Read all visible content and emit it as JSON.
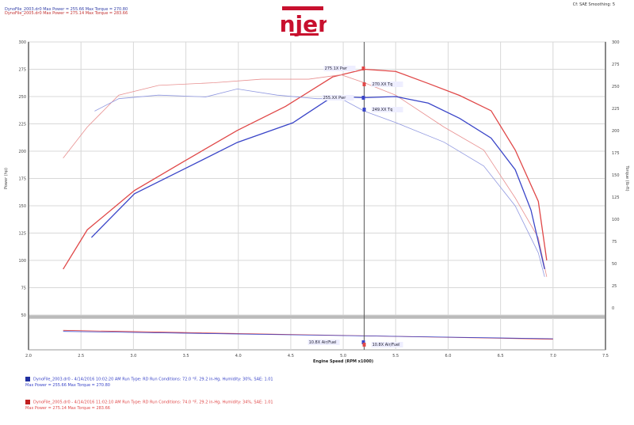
{
  "header": {
    "line1": "DynoFile_2003.dr0 Max Power = 255.66    Max Torque = 270.80",
    "line2": "DynoFile_2005.dr0 Max Power = 275.14    Max Torque = 283.66",
    "settings": "Cf: SAE  Smoothing: 5",
    "logo_text": "injen"
  },
  "colors": {
    "run1": "#3a45c8",
    "run2": "#e04848",
    "grid": "#d8d8d8",
    "axis": "#888888"
  },
  "cursor": {
    "labels": [
      "275.1X Pwr",
      "270.XX Tq",
      "255.XX Pwr",
      "249.XX Tq",
      "10.8X Air/Fuel",
      "10.8X Air/Fuel"
    ]
  },
  "legend": [
    {
      "line1": "DynoFile_2003.dr0 - 4/14/2016 10:02:20 AM  Run Type: RD  Run Conditions: 72.0 °F, 29.2 in-Hg, Humidity: 30%, SAE: 1.01",
      "line2": "Max Power = 255.66  Max Torque = 270.80"
    },
    {
      "line1": "DynoFile_2005.dr0 - 4/14/2016 11:02:10 AM  Run Type: RD  Run Conditions: 74.0 °F, 29.2 in-Hg, Humidity: 34%, SAE: 1.01",
      "line2": "Max Power = 275.14  Max Torque = 283.66"
    }
  ],
  "chart_data": {
    "type": "line",
    "xlabel": "Engine Speed (RPM x1000)",
    "ylabel": "Power (hp)",
    "y2label": "Torque (lb-ft)",
    "xlim": [
      2.0,
      7.5
    ],
    "xticks": [
      "2.0",
      "2.5",
      "3.0",
      "3.5",
      "4.0",
      "4.5",
      "5.0",
      "5.5",
      "6.0",
      "6.5",
      "7.0",
      "7.5"
    ],
    "ylim": [
      50,
      300
    ],
    "yticks": [
      "300",
      "275",
      "250",
      "225",
      "200",
      "175",
      "150",
      "125",
      "100",
      "75",
      "50"
    ],
    "y2lim": [
      0,
      300
    ],
    "y2ticks": [
      "300",
      "275",
      "250",
      "225",
      "200",
      "175",
      "150",
      "125",
      "100",
      "75",
      "50",
      "25",
      "0"
    ],
    "grid": true,
    "cursor_rpm": 5.2,
    "series": [
      {
        "axis": "left",
        "color": "#e04848",
        "width": 1.3,
        "x": [
          2.33,
          2.56,
          3.01,
          3.47,
          3.99,
          4.45,
          4.9,
          5.2,
          5.5,
          5.81,
          6.11,
          6.41,
          6.64,
          6.86,
          6.94
        ],
        "y": [
          92,
          128,
          164,
          190,
          219,
          241,
          268,
          275,
          273,
          262,
          251,
          237,
          201,
          154,
          100
        ]
      },
      {
        "axis": "right",
        "color": "#e89090",
        "width": 0.8,
        "x": [
          2.33,
          2.56,
          2.86,
          3.24,
          3.77,
          4.22,
          4.67,
          4.98,
          5.2,
          5.5,
          5.96,
          6.34,
          6.64,
          6.86,
          6.94
        ],
        "y": [
          169,
          204,
          240,
          251,
          254,
          258,
          258,
          263,
          254,
          240,
          204,
          178,
          124,
          79,
          35
        ]
      },
      {
        "axis": "left",
        "color": "#3a45c8",
        "width": 1.3,
        "x": [
          2.6,
          3.01,
          3.47,
          3.99,
          4.52,
          4.9,
          5.2,
          5.5,
          5.81,
          6.11,
          6.41,
          6.64,
          6.79,
          6.92
        ],
        "y": [
          121,
          161,
          183,
          208,
          226,
          250,
          249,
          250,
          244,
          230,
          212,
          183,
          146,
          92
        ]
      },
      {
        "axis": "right",
        "color": "#9098e0",
        "width": 0.8,
        "x": [
          2.63,
          2.86,
          3.24,
          3.69,
          3.99,
          4.37,
          4.75,
          4.98,
          5.2,
          5.5,
          5.96,
          6.34,
          6.64,
          6.86,
          6.92
        ],
        "y": [
          222,
          236,
          240,
          238,
          247,
          240,
          236,
          236,
          222,
          209,
          187,
          160,
          115,
          62,
          35
        ]
      }
    ],
    "afr": {
      "ylim": [
        9,
        15
      ],
      "series": [
        {
          "color": "#e04848",
          "x": [
            2.33,
            7.0
          ],
          "y": [
            12.7,
            11.0
          ]
        },
        {
          "color": "#3a45c8",
          "x": [
            2.33,
            7.0
          ],
          "y": [
            12.5,
            11.1
          ]
        }
      ]
    }
  }
}
